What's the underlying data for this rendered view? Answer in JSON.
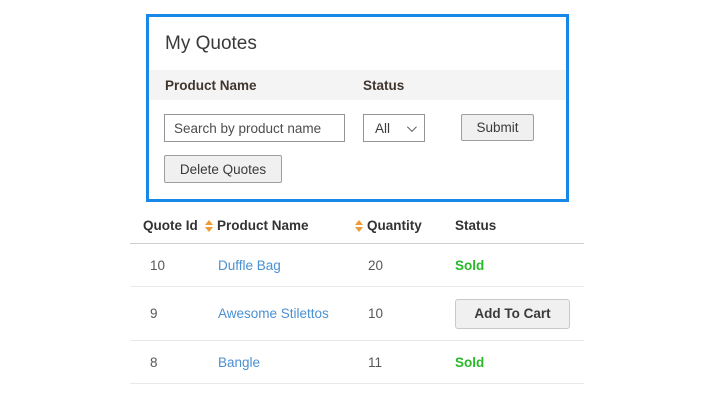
{
  "colors": {
    "panel_border": "#1787e8",
    "link_blue": "#4a90d2",
    "sold_green": "#29b829",
    "sort_icon_orange": "#ef9b34"
  },
  "panel": {
    "title": "My Quotes",
    "filter_labels": {
      "product_name": "Product Name",
      "status": "Status"
    },
    "search": {
      "placeholder": "Search by product name",
      "value": ""
    },
    "status_filter": {
      "selected": "All"
    },
    "buttons": {
      "submit": "Submit",
      "delete": "Delete Quotes"
    }
  },
  "table": {
    "headers": {
      "quote_id": "Quote Id",
      "product_name": "Product Name",
      "quantity": "Quantity",
      "status": "Status"
    },
    "rows": [
      {
        "quote_id": "10",
        "product_name": "Duffle Bag",
        "quantity": "20",
        "status": "Sold",
        "status_type": "sold"
      },
      {
        "quote_id": "9",
        "product_name": "Awesome Stilettos",
        "quantity": "10",
        "status": "Add To Cart",
        "status_type": "button"
      },
      {
        "quote_id": "8",
        "product_name": "Bangle",
        "quantity": "11",
        "status": "Sold",
        "status_type": "sold"
      }
    ]
  }
}
